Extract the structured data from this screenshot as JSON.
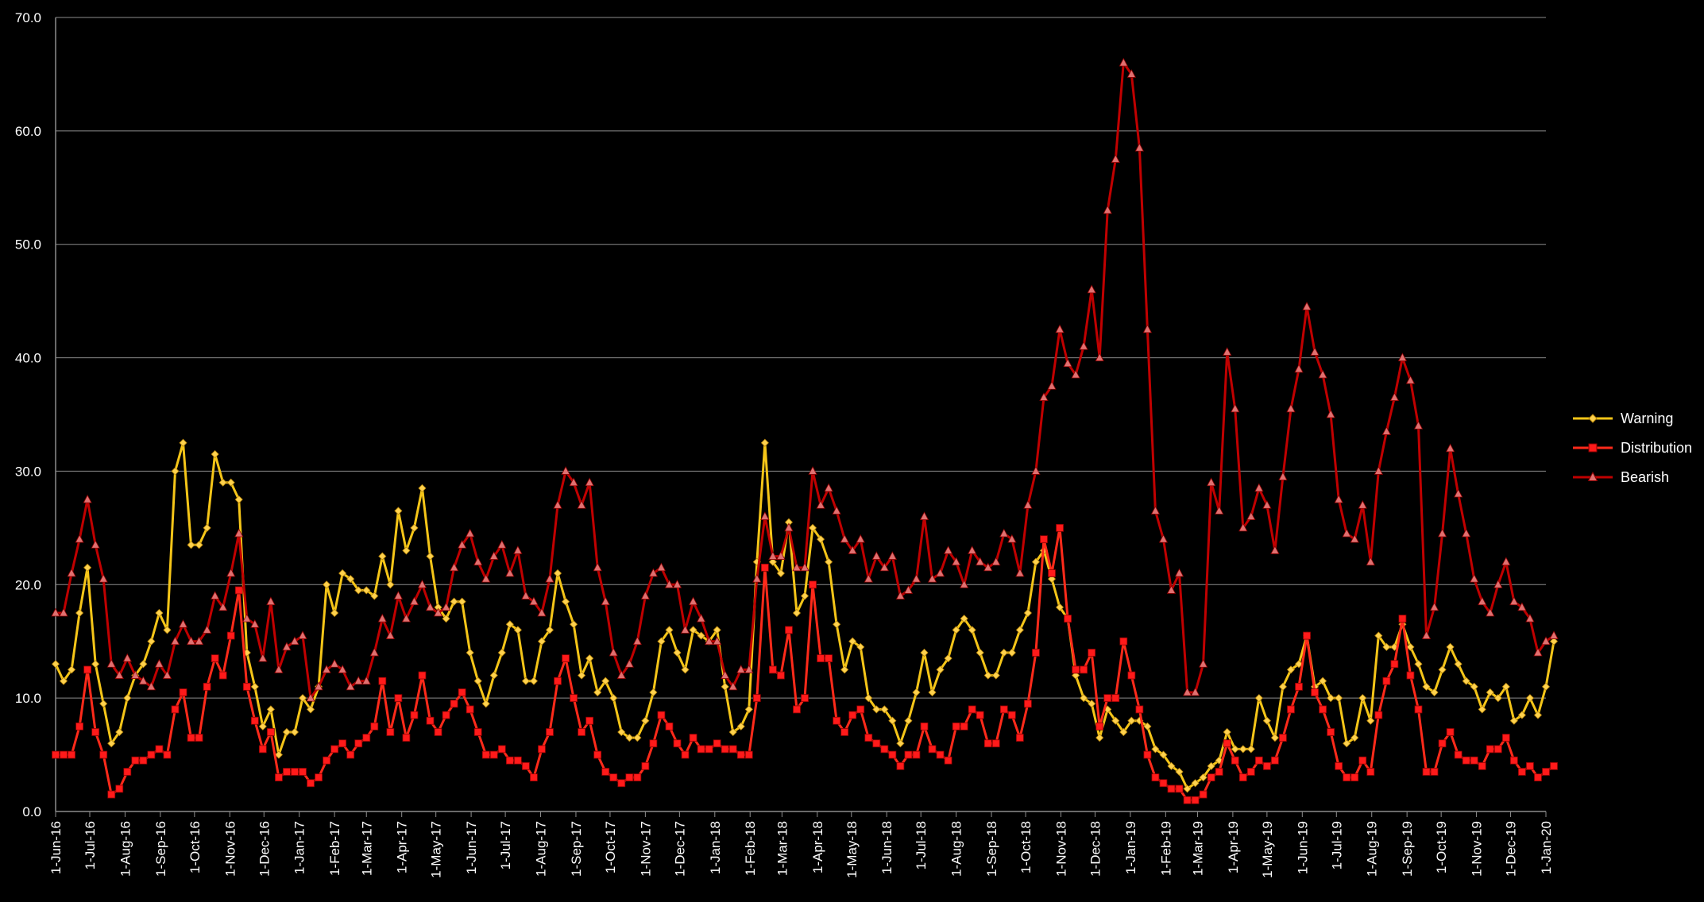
{
  "chart_data": {
    "type": "line",
    "ylim": [
      0,
      70
    ],
    "yticks": [
      "0.0",
      "10.0",
      "20.0",
      "30.0",
      "40.0",
      "50.0",
      "60.0",
      "70.0"
    ],
    "x_start": "2016-06-01",
    "x_end": "2020-01-01",
    "x_interval": "weekly",
    "xticks": [
      {
        "date": "2016-06-01",
        "label": "1-Jun-16"
      },
      {
        "date": "2016-07-01",
        "label": "1-Jul-16"
      },
      {
        "date": "2016-08-01",
        "label": "1-Aug-16"
      },
      {
        "date": "2016-09-01",
        "label": "1-Sep-16"
      },
      {
        "date": "2016-10-01",
        "label": "1-Oct-16"
      },
      {
        "date": "2016-11-01",
        "label": "1-Nov-16"
      },
      {
        "date": "2016-12-01",
        "label": "1-Dec-16"
      },
      {
        "date": "2017-01-01",
        "label": "1-Jan-17"
      },
      {
        "date": "2017-02-01",
        "label": "1-Feb-17"
      },
      {
        "date": "2017-03-01",
        "label": "1-Mar-17"
      },
      {
        "date": "2017-04-01",
        "label": "1-Apr-17"
      },
      {
        "date": "2017-05-01",
        "label": "1-May-17"
      },
      {
        "date": "2017-06-01",
        "label": "1-Jun-17"
      },
      {
        "date": "2017-07-01",
        "label": "1-Jul-17"
      },
      {
        "date": "2017-08-01",
        "label": "1-Aug-17"
      },
      {
        "date": "2017-09-01",
        "label": "1-Sep-17"
      },
      {
        "date": "2017-10-01",
        "label": "1-Oct-17"
      },
      {
        "date": "2017-11-01",
        "label": "1-Nov-17"
      },
      {
        "date": "2017-12-01",
        "label": "1-Dec-17"
      },
      {
        "date": "2018-01-01",
        "label": "1-Jan-18"
      },
      {
        "date": "2018-02-01",
        "label": "1-Feb-18"
      },
      {
        "date": "2018-03-01",
        "label": "1-Mar-18"
      },
      {
        "date": "2018-04-01",
        "label": "1-Apr-18"
      },
      {
        "date": "2018-05-01",
        "label": "1-May-18"
      },
      {
        "date": "2018-06-01",
        "label": "1-Jun-18"
      },
      {
        "date": "2018-07-01",
        "label": "1-Jul-18"
      },
      {
        "date": "2018-08-01",
        "label": "1-Aug-18"
      },
      {
        "date": "2018-09-01",
        "label": "1-Sep-18"
      },
      {
        "date": "2018-10-01",
        "label": "1-Oct-18"
      },
      {
        "date": "2018-11-01",
        "label": "1-Nov-18"
      },
      {
        "date": "2018-12-01",
        "label": "1-Dec-18"
      },
      {
        "date": "2019-01-01",
        "label": "1-Jan-19"
      },
      {
        "date": "2019-02-01",
        "label": "1-Feb-19"
      },
      {
        "date": "2019-03-01",
        "label": "1-Mar-19"
      },
      {
        "date": "2019-04-01",
        "label": "1-Apr-19"
      },
      {
        "date": "2019-05-01",
        "label": "1-May-19"
      },
      {
        "date": "2019-06-01",
        "label": "1-Jun-19"
      },
      {
        "date": "2019-07-01",
        "label": "1-Jul-19"
      },
      {
        "date": "2019-08-01",
        "label": "1-Aug-19"
      },
      {
        "date": "2019-09-01",
        "label": "1-Sep-19"
      },
      {
        "date": "2019-10-01",
        "label": "1-Oct-19"
      },
      {
        "date": "2019-11-01",
        "label": "1-Nov-19"
      },
      {
        "date": "2019-12-01",
        "label": "1-Dec-19"
      },
      {
        "date": "2020-01-01",
        "label": "1-Jan-20"
      }
    ],
    "grid": "horizontal",
    "legend": "right",
    "series": [
      {
        "name": "Warning",
        "color": "#f5c518",
        "marker": "diamond",
        "values": [
          13,
          11.5,
          12.5,
          17.5,
          21.5,
          13,
          9.5,
          6,
          7,
          10,
          12,
          13,
          15,
          17.5,
          16,
          30,
          32.5,
          23.5,
          23.5,
          25,
          31.5,
          29,
          29,
          27.5,
          14,
          11,
          7.5,
          9,
          5,
          7,
          7,
          10,
          9,
          11,
          20,
          17.5,
          21,
          20.5,
          19.5,
          19.5,
          19,
          22.5,
          20,
          26.5,
          23,
          25,
          28.5,
          22.5,
          18,
          17,
          18.5,
          18.5,
          14,
          11.5,
          9.5,
          12,
          14,
          16.5,
          16,
          11.5,
          11.5,
          15,
          16,
          21,
          18.5,
          16.5,
          12,
          13.5,
          10.5,
          11.5,
          10,
          7,
          6.5,
          6.5,
          8,
          10.5,
          15,
          16,
          14,
          12.5,
          16,
          15.5,
          15,
          16,
          11,
          7,
          7.5,
          9,
          22,
          32.5,
          22,
          21,
          25.5,
          17.5,
          19,
          25,
          24,
          22,
          16.5,
          12.5,
          15,
          14.5,
          10,
          9,
          9,
          8,
          6,
          8,
          10.5,
          14,
          10.5,
          12.5,
          13.5,
          16,
          17,
          16,
          14,
          12,
          12,
          14,
          14,
          16,
          17.5,
          22,
          23,
          20.5,
          18,
          17,
          12,
          10,
          9.5,
          6.5,
          9,
          8,
          7,
          8,
          8,
          7.5,
          5.5,
          5,
          4,
          3.5,
          2,
          2.5,
          3,
          4,
          4.5,
          7,
          5.5,
          5.5,
          5.5,
          10,
          8,
          6.5,
          11,
          12.5,
          13,
          15.5,
          11,
          11.5,
          10,
          10,
          6,
          6.5,
          10,
          8,
          15.5,
          14.5,
          14.5,
          16.5,
          14.5,
          13,
          11,
          10.5,
          12.5,
          14.5,
          13,
          11.5,
          11,
          9,
          10.5,
          10,
          11,
          8,
          8.5,
          10,
          8.5,
          11,
          15
        ]
      },
      {
        "name": "Distribution",
        "color": "#ff2a1a",
        "marker": "square",
        "values": [
          5,
          5,
          5,
          7.5,
          12.5,
          7,
          5,
          1.5,
          2,
          3.5,
          4.5,
          4.5,
          5,
          5.5,
          5,
          9,
          10.5,
          6.5,
          6.5,
          11,
          13.5,
          12,
          15.5,
          19.5,
          11,
          8,
          5.5,
          7,
          3,
          3.5,
          3.5,
          3.5,
          2.5,
          3,
          4.5,
          5.5,
          6,
          5,
          6,
          6.5,
          7.5,
          11.5,
          7,
          10,
          6.5,
          8.5,
          12,
          8,
          7,
          8.5,
          9.5,
          10.5,
          9,
          7,
          5,
          5,
          5.5,
          4.5,
          4.5,
          4,
          3,
          5.5,
          7,
          11.5,
          13.5,
          10,
          7,
          8,
          5,
          3.5,
          3,
          2.5,
          3,
          3,
          4,
          6,
          8.5,
          7.5,
          6,
          5,
          6.5,
          5.5,
          5.5,
          6,
          5.5,
          5.5,
          5,
          5,
          10,
          21.5,
          12.5,
          12,
          16,
          9,
          10,
          20,
          13.5,
          13.5,
          8,
          7,
          8.5,
          9,
          6.5,
          6,
          5.5,
          5,
          4,
          5,
          5,
          7.5,
          5.5,
          5,
          4.5,
          7.5,
          7.5,
          9,
          8.5,
          6,
          6,
          9,
          8.5,
          6.5,
          9.5,
          14,
          24,
          21,
          25,
          17,
          12.5,
          12.5,
          14,
          7.5,
          10,
          10,
          15,
          12,
          9,
          5,
          3,
          2.5,
          2,
          2,
          1,
          1,
          1.5,
          3,
          3.5,
          6,
          4.5,
          3,
          3.5,
          4.5,
          4,
          4.5,
          6.5,
          9,
          11,
          15.5,
          10.5,
          9,
          7,
          4,
          3,
          3,
          4.5,
          3.5,
          8.5,
          11.5,
          13,
          17,
          12,
          9,
          3.5,
          3.5,
          6,
          7,
          5,
          4.5,
          4.5,
          4,
          5.5,
          5.5,
          6.5,
          4.5,
          3.5,
          4,
          3,
          3.5,
          4
        ]
      },
      {
        "name": "Bearish",
        "color": "#c00000",
        "marker": "triangle",
        "values": [
          17.5,
          17.5,
          21,
          24,
          27.5,
          23.5,
          20.5,
          13,
          12,
          13.5,
          12,
          11.5,
          11,
          13,
          12,
          15,
          16.5,
          15,
          15,
          16,
          19,
          18,
          21,
          24.5,
          17,
          16.5,
          13.5,
          18.5,
          12.5,
          14.5,
          15,
          15.5,
          10,
          11,
          12.5,
          13,
          12.5,
          11,
          11.5,
          11.5,
          14,
          17,
          15.5,
          19,
          17,
          18.5,
          20,
          18,
          17.5,
          18,
          21.5,
          23.5,
          24.5,
          22,
          20.5,
          22.5,
          23.5,
          21,
          23,
          19,
          18.5,
          17.5,
          20.5,
          27,
          30,
          29,
          27,
          29,
          21.5,
          18.5,
          14,
          12,
          13,
          15,
          19,
          21,
          21.5,
          20,
          20,
          16,
          18.5,
          17,
          15,
          15,
          12,
          11,
          12.5,
          12.5,
          20.5,
          26,
          22.5,
          22.5,
          25,
          21.5,
          21.5,
          30,
          27,
          28.5,
          26.5,
          24,
          23,
          24,
          20.5,
          22.5,
          21.5,
          22.5,
          19,
          19.5,
          20.5,
          26,
          20.5,
          21,
          23,
          22,
          20,
          23,
          22,
          21.5,
          22,
          24.5,
          24,
          21,
          27,
          30,
          36.5,
          37.5,
          42.5,
          39.5,
          38.5,
          41,
          46,
          40,
          53,
          57.5,
          66,
          65,
          58.5,
          42.5,
          26.5,
          24,
          19.5,
          21,
          10.5,
          10.5,
          13,
          29,
          26.5,
          40.5,
          35.5,
          25,
          26,
          28.5,
          27,
          23,
          29.5,
          35.5,
          39,
          44.5,
          40.5,
          38.5,
          35,
          27.5,
          24.5,
          24,
          27,
          22,
          30,
          33.5,
          36.5,
          40,
          38,
          34,
          15.5,
          18,
          24.5,
          32,
          28,
          24.5,
          20.5,
          18.5,
          17.5,
          20,
          22,
          18.5,
          18,
          17,
          14,
          15,
          15.5
        ]
      }
    ]
  }
}
